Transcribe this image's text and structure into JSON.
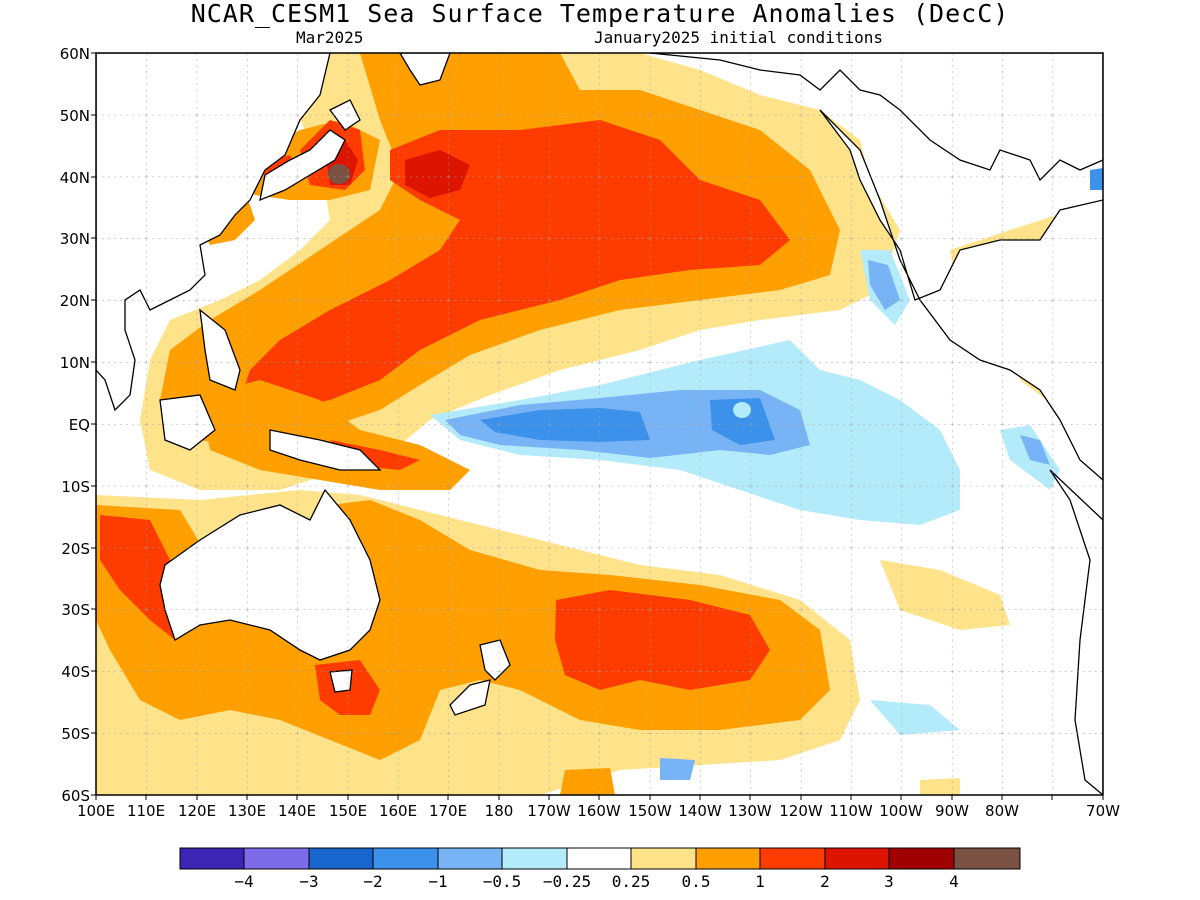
{
  "title": "NCAR_CESM1 Sea Surface Temperature Anomalies (DecC)",
  "subtitle_left": "Mar2025",
  "subtitle_right": "January2025 initial conditions",
  "lat_labels": [
    "60N",
    "50N",
    "40N",
    "30N",
    "20N",
    "10N",
    "EQ",
    "10S",
    "20S",
    "30S",
    "40S",
    "50S",
    "60S"
  ],
  "lon_labels": [
    "100E",
    "110E",
    "120E",
    "130E",
    "140E",
    "150E",
    "160E",
    "170E",
    "180",
    "170W",
    "160W",
    "150W",
    "140W",
    "130W",
    "120W",
    "110W",
    "100W",
    "90W",
    "80W",
    "70W"
  ],
  "colorbar": {
    "colors": [
      "#3c24b4",
      "#7d6bea",
      "#1765cd",
      "#3c91ea",
      "#78b4f5",
      "#b4ebfa",
      "#ffffff",
      "#fee38b",
      "#ff9f00",
      "#ff3c00",
      "#dc1400",
      "#a00000",
      "#7a5243"
    ],
    "labels": [
      "−4",
      "−3",
      "−2",
      "−1",
      "−0.5",
      "−0.25",
      "0.25",
      "0.5",
      "1",
      "2",
      "3",
      "4"
    ]
  }
}
